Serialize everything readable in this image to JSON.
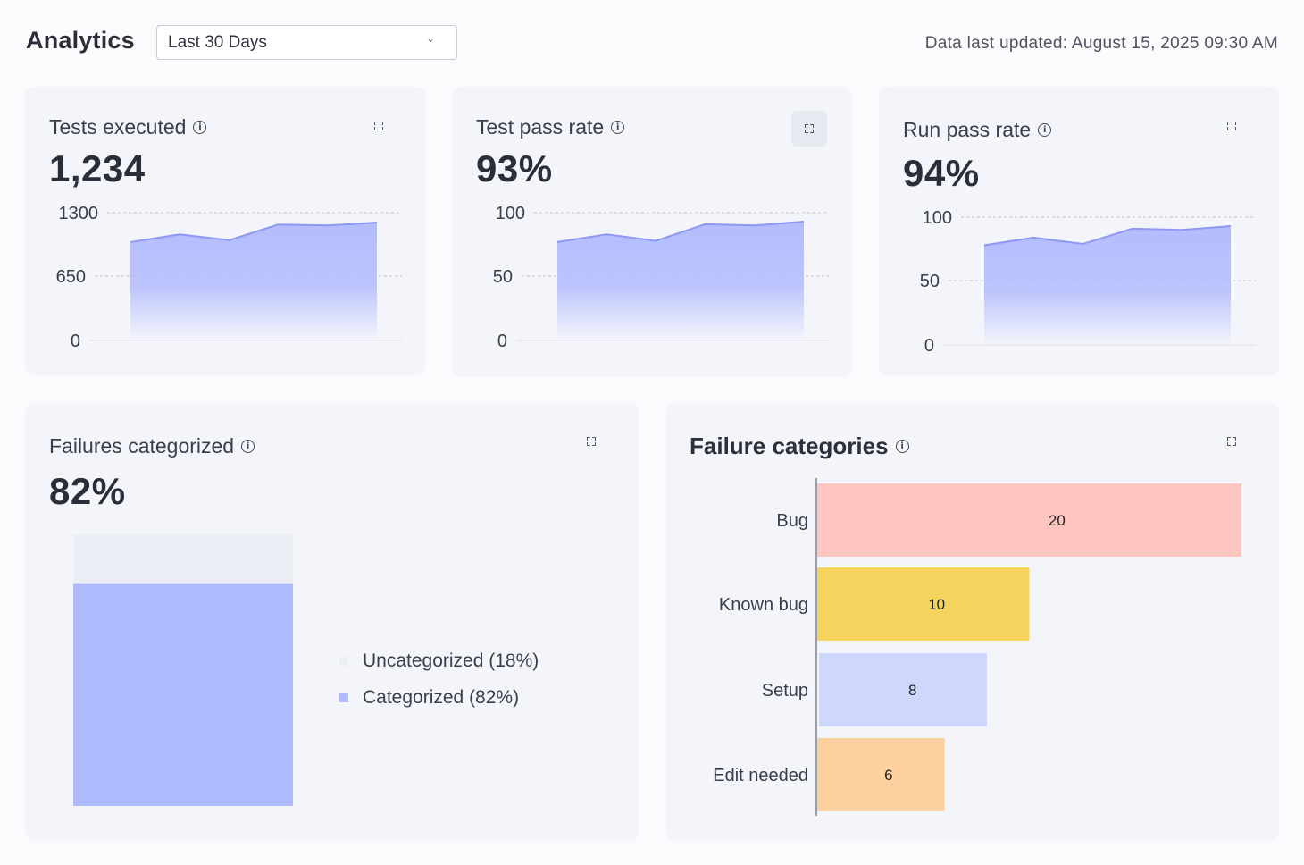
{
  "header": {
    "title": "Analytics",
    "date_range": "Last 30 Days",
    "last_updated": "Data last updated: August 15, 2025 09:30 AM"
  },
  "colors": {
    "area_fill": "#b3bcfd",
    "area_line": "#8e98f2",
    "bug": "#fec6c0",
    "known_bug": "#f5d35c",
    "setup": "#d0d7fd",
    "edit_needed": "#fecf9f",
    "uncategorized": "#eceef5",
    "categorized": "#b0bbfd"
  },
  "icons": {
    "info": "info-circle-icon",
    "expand": "expand-icon",
    "dropdown": "chevron-down-icon"
  },
  "cards": {
    "tests_executed": {
      "title": "Tests executed",
      "value": "1,234"
    },
    "test_pass_rate": {
      "title": "Test pass rate",
      "value": "93%"
    },
    "run_pass_rate": {
      "title": "Run pass rate",
      "value": "94%"
    },
    "failures_categorized": {
      "title": "Failures categorized",
      "value": "82%",
      "legend": [
        "Uncategorized (18%)",
        "Categorized (82%)"
      ]
    },
    "failure_categories": {
      "title": "Failure categories"
    }
  },
  "chart_data": [
    {
      "type": "area",
      "y_ticks": [
        "1300",
        "650",
        "0"
      ],
      "ylim": [
        0,
        1300
      ],
      "values": [
        1000,
        1080,
        1020,
        1180,
        1170,
        1200
      ],
      "grid": true
    },
    {
      "type": "area",
      "y_ticks": [
        "100",
        "50",
        "0"
      ],
      "ylim": [
        0,
        100
      ],
      "values": [
        77,
        83,
        78,
        91,
        90,
        93
      ],
      "grid": true
    },
    {
      "type": "area",
      "y_ticks": [
        "100",
        "50",
        "0"
      ],
      "ylim": [
        0,
        100
      ],
      "values": [
        78,
        84,
        79,
        91,
        90,
        93
      ],
      "grid": true
    },
    {
      "type": "bar",
      "stacked": true,
      "series": [
        {
          "name": "Uncategorized (18%)",
          "values": [
            18
          ]
        },
        {
          "name": "Categorized (82%)",
          "values": [
            82
          ]
        }
      ],
      "ylim": [
        0,
        100
      ],
      "legend": "right"
    },
    {
      "type": "bar",
      "orientation": "horizontal",
      "categories": [
        "Bug",
        "Known bug",
        "Setup",
        "Edit needed"
      ],
      "values": [
        20,
        10,
        8,
        6
      ],
      "labels": [
        "20",
        "10",
        "8",
        "6"
      ],
      "xlim": [
        0,
        20
      ]
    }
  ]
}
